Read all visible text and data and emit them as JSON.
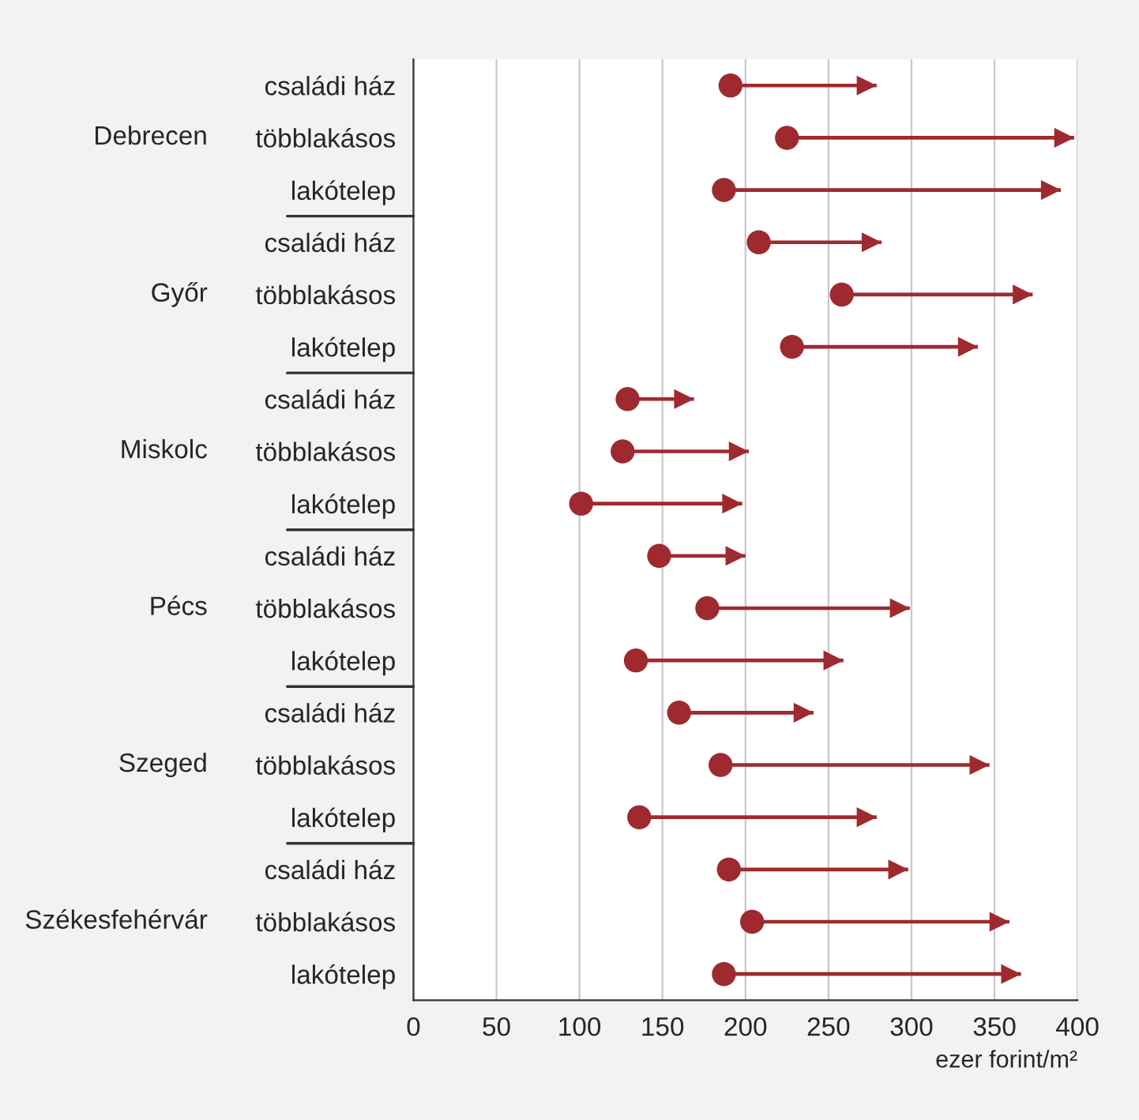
{
  "chart_data": {
    "type": "bar",
    "orientation": "horizontal",
    "categories": [
      "családi ház",
      "többlakásos",
      "lakótelep",
      "családi ház",
      "többlakásos",
      "lakótelep",
      "családi ház",
      "többlakásos",
      "lakótelep",
      "családi ház",
      "többlakásos",
      "lakótelep",
      "családi ház",
      "többlakásos",
      "lakótelep",
      "családi ház",
      "többlakásos",
      "lakótelep"
    ],
    "series": [
      {
        "color": "#9e2a2f",
        "base": [
          191,
          225,
          187,
          208,
          258,
          228,
          129,
          126,
          101,
          148,
          177,
          134,
          160,
          185,
          136,
          190,
          204,
          187
        ],
        "values": [
          88,
          173,
          203,
          74,
          115,
          112,
          40,
          76,
          97,
          52,
          122,
          125,
          81,
          162,
          143,
          108,
          155,
          179
        ]
      },
      {
        "type": "scatter",
        "color": "#9e2a2f",
        "marker": "circle",
        "values": [
          191,
          225,
          187,
          208,
          258,
          228,
          129,
          126,
          101,
          148,
          177,
          134,
          160,
          185,
          136,
          190,
          204,
          187
        ]
      }
    ],
    "annotations": [
      "Debrecen",
      "Győr",
      "Miskolc",
      "Pécs",
      "Szeged",
      "Székesfehérvár"
    ],
    "xlabel": "ezer forint/m²",
    "xlim": [
      0,
      400
    ],
    "xticks": [
      0,
      50,
      100,
      150,
      200,
      250,
      300,
      350,
      400
    ],
    "grid": "x"
  }
}
